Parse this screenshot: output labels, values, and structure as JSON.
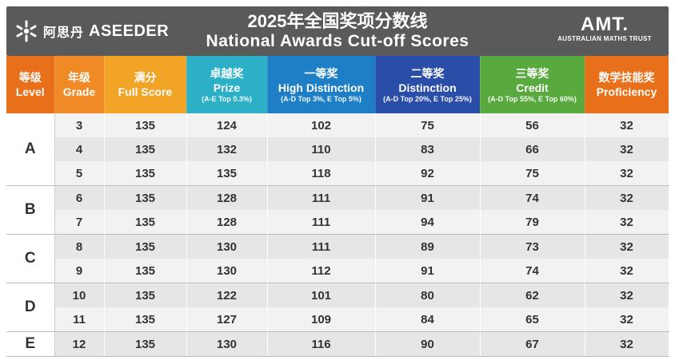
{
  "header": {
    "logo_cn": "阿思丹",
    "logo_en": "ASEEDER",
    "title_cn": "2025年全国奖项分数线",
    "title_en": "National Awards Cut-off Scores",
    "amt_logo": "AMT.",
    "amt_sub": "AUSTRALIAN MATHS TRUST"
  },
  "columns": [
    {
      "cn": "等级",
      "en": "Level",
      "note": "",
      "color": "#e8701a"
    },
    {
      "cn": "年级",
      "en": "Grade",
      "note": "",
      "color": "#ef8a26"
    },
    {
      "cn": "满分",
      "en": "Full Score",
      "note": "",
      "color": "#f2a427"
    },
    {
      "cn": "卓越奖",
      "en": "Prize",
      "note": "(A-E Top 0.3%)",
      "color": "#2bb0c8"
    },
    {
      "cn": "一等奖",
      "en": "High Distinction",
      "note": "(A-D Top 3%, E Top 5%)",
      "color": "#1e7fc6"
    },
    {
      "cn": "二等奖",
      "en": "Distinction",
      "note": "(A-D Top 20%, E Top 25%)",
      "color": "#2a4ea8"
    },
    {
      "cn": "三等奖",
      "en": "Credit",
      "note": "(A-D Top 55%, E Top 60%)",
      "color": "#58a93e"
    },
    {
      "cn": "数学技能奖",
      "en": "Proficiency",
      "note": "",
      "color": "#e8701a"
    }
  ],
  "groups": [
    {
      "level": "A",
      "rows": [
        {
          "grade": "3",
          "full": "135",
          "prize": "124",
          "hd": "102",
          "d": "75",
          "credit": "56",
          "prof": "32"
        },
        {
          "grade": "4",
          "full": "135",
          "prize": "132",
          "hd": "110",
          "d": "83",
          "credit": "66",
          "prof": "32"
        },
        {
          "grade": "5",
          "full": "135",
          "prize": "135",
          "hd": "118",
          "d": "92",
          "credit": "75",
          "prof": "32"
        }
      ]
    },
    {
      "level": "B",
      "rows": [
        {
          "grade": "6",
          "full": "135",
          "prize": "128",
          "hd": "111",
          "d": "91",
          "credit": "74",
          "prof": "32"
        },
        {
          "grade": "7",
          "full": "135",
          "prize": "128",
          "hd": "111",
          "d": "94",
          "credit": "79",
          "prof": "32"
        }
      ]
    },
    {
      "level": "C",
      "rows": [
        {
          "grade": "8",
          "full": "135",
          "prize": "130",
          "hd": "111",
          "d": "89",
          "credit": "73",
          "prof": "32"
        },
        {
          "grade": "9",
          "full": "135",
          "prize": "130",
          "hd": "112",
          "d": "91",
          "credit": "74",
          "prof": "32"
        }
      ]
    },
    {
      "level": "D",
      "rows": [
        {
          "grade": "10",
          "full": "135",
          "prize": "122",
          "hd": "101",
          "d": "80",
          "credit": "62",
          "prof": "32"
        },
        {
          "grade": "11",
          "full": "135",
          "prize": "127",
          "hd": "109",
          "d": "84",
          "credit": "65",
          "prof": "32"
        }
      ]
    },
    {
      "level": "E",
      "rows": [
        {
          "grade": "12",
          "full": "135",
          "prize": "130",
          "hd": "116",
          "d": "90",
          "credit": "67",
          "prof": "32"
        }
      ]
    }
  ]
}
